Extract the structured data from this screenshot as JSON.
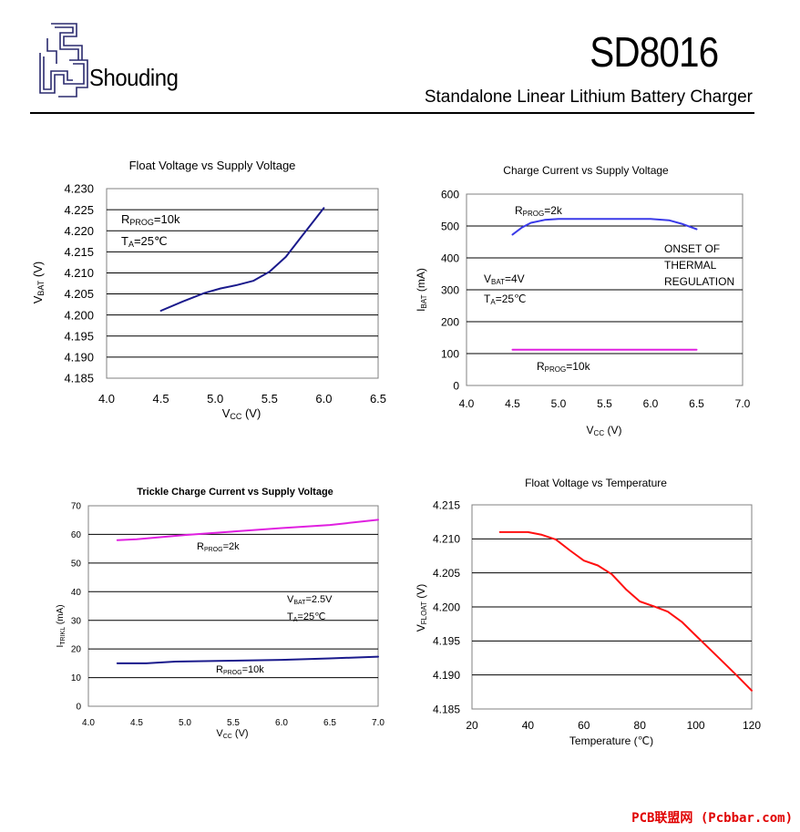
{
  "header": {
    "brand": "Shouding",
    "part_number": "SD8016",
    "subtitle": "Standalone Linear Lithium Battery Charger"
  },
  "watermark": "PCB联盟网 (Pcbbar.com)",
  "chart_data": [
    {
      "type": "line",
      "title": "Float Voltage vs Supply Voltage",
      "xlabel": "VCC (V)",
      "ylabel": "VBAT (V)",
      "xlim": [
        4.0,
        6.5
      ],
      "ylim": [
        4.185,
        4.23
      ],
      "xticks": [
        "4.0",
        "4.5",
        "5.0",
        "5.5",
        "6.0",
        "6.5"
      ],
      "yticks": [
        "4.230",
        "4.225",
        "4.220",
        "4.215",
        "4.210",
        "4.205",
        "4.200",
        "4.195",
        "4.190",
        "4.185"
      ],
      "grid": "horizontal",
      "series": [
        {
          "color": "#1a1a8c",
          "x": [
            4.5,
            4.7,
            4.9,
            5.05,
            5.2,
            5.35,
            5.5,
            5.65,
            5.8,
            6.0
          ],
          "y": [
            4.201,
            4.2032,
            4.2052,
            4.2063,
            4.2071,
            4.2081,
            4.2103,
            4.2138,
            4.2188,
            4.2254
          ]
        }
      ],
      "annotations": [
        {
          "main": "R",
          "sub": "PROG",
          "rest": "=10k"
        },
        {
          "main": "T",
          "sub": "A",
          "rest": "=25℃"
        }
      ]
    },
    {
      "type": "line",
      "title": "Charge Current vs Supply Voltage",
      "xlabel": "VCC (V)",
      "ylabel": "IBAT (mA)",
      "xlim": [
        4.0,
        7.0
      ],
      "ylim": [
        0,
        600
      ],
      "xticks": [
        "4.0",
        "4.5",
        "5.0",
        "5.5",
        "6.0",
        "6.5",
        "7.0"
      ],
      "yticks": [
        "600",
        "500",
        "400",
        "300",
        "200",
        "100",
        "0"
      ],
      "grid": "horizontal",
      "series": [
        {
          "name": "RPROG=2k",
          "color": "#3a3ae8",
          "x": [
            4.5,
            4.6,
            4.7,
            4.85,
            5.0,
            5.5,
            6.0,
            6.2,
            6.35,
            6.5
          ],
          "y": [
            473,
            495,
            510,
            519,
            522,
            522,
            522,
            518,
            506,
            490
          ]
        },
        {
          "name": "RPROG=10k",
          "color": "#e020e0",
          "x": [
            4.5,
            6.5
          ],
          "y": [
            112,
            112
          ]
        }
      ],
      "annotations": [
        {
          "main": "R",
          "sub": "PROG",
          "rest": "=2k"
        },
        {
          "main": "R",
          "sub": "PROG",
          "rest": "=10k"
        },
        {
          "main": "V",
          "sub": "BAT",
          "rest": "=4V"
        },
        {
          "main": "T",
          "sub": "A",
          "rest": "=25℃"
        },
        {
          "main": "ONSET OF",
          "sub": "",
          "rest": ""
        },
        {
          "main": "THERMAL",
          "sub": "",
          "rest": ""
        },
        {
          "main": "REGULATION",
          "sub": "",
          "rest": ""
        }
      ]
    },
    {
      "type": "line",
      "title": "Trickle Charge Current vs Supply Voltage",
      "xlabel": "VCC (V)",
      "ylabel": "ITRIKL (mA)",
      "xlim": [
        4.0,
        7.0
      ],
      "ylim": [
        0,
        70
      ],
      "xticks": [
        "4.0",
        "4.5",
        "5.0",
        "5.5",
        "6.0",
        "6.5",
        "7.0"
      ],
      "yticks": [
        "70",
        "60",
        "50",
        "40",
        "30",
        "20",
        "10",
        "0"
      ],
      "grid": "horizontal",
      "series": [
        {
          "name": "RPROG=2k",
          "color": "#e020e0",
          "x": [
            4.3,
            4.5,
            5.0,
            5.5,
            6.0,
            6.5,
            7.0
          ],
          "y": [
            58.0,
            58.3,
            59.8,
            61.0,
            62.2,
            63.3,
            65.1
          ]
        },
        {
          "name": "RPROG=10k",
          "color": "#1a1a8c",
          "x": [
            4.3,
            4.6,
            4.9,
            5.5,
            6.0,
            6.5,
            7.0
          ],
          "y": [
            15.0,
            15.0,
            15.6,
            15.9,
            16.2,
            16.7,
            17.3
          ]
        }
      ],
      "annotations": [
        {
          "main": "R",
          "sub": "PROG",
          "rest": "=2k"
        },
        {
          "main": "R",
          "sub": "PROG",
          "rest": "=10k"
        },
        {
          "main": "V",
          "sub": "BAT",
          "rest": "=2.5V"
        },
        {
          "main": "T",
          "sub": "A",
          "rest": "=25℃"
        }
      ]
    },
    {
      "type": "line",
      "title": "Float Voltage vs Temperature",
      "xlabel": "Temperature (℃)",
      "ylabel": "VFLOAT (V)",
      "xlim": [
        20,
        120
      ],
      "ylim": [
        4.185,
        4.215
      ],
      "xticks": [
        "20",
        "40",
        "60",
        "80",
        "100",
        "120"
      ],
      "yticks": [
        "4.215",
        "4.210",
        "4.205",
        "4.200",
        "4.195",
        "4.190",
        "4.185"
      ],
      "grid": "horizontal",
      "series": [
        {
          "color": "#ff1010",
          "x": [
            30,
            40,
            45,
            50,
            55,
            60,
            65,
            70,
            75,
            80,
            85,
            90,
            95,
            100,
            105,
            110,
            115,
            120
          ],
          "y": [
            4.211,
            4.211,
            4.2106,
            4.2099,
            4.2083,
            4.2068,
            4.2061,
            4.2048,
            4.2026,
            4.2008,
            4.2001,
            4.1993,
            4.1978,
            4.1958,
            4.1938,
            4.1918,
            4.1898,
            4.1877
          ]
        }
      ],
      "annotations": []
    }
  ]
}
